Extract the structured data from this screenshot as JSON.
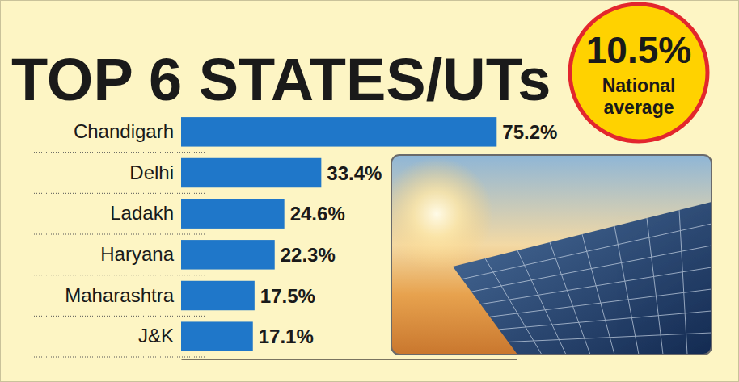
{
  "chart_data": {
    "type": "bar",
    "title": "TOP 6 STATES/UTs",
    "orientation": "horizontal",
    "categories": [
      "Chandigarh",
      "Delhi",
      "Ladakh",
      "Haryana",
      "Maharashtra",
      "J&K"
    ],
    "values": [
      75.2,
      33.4,
      24.6,
      22.3,
      17.5,
      17.1
    ],
    "value_labels": [
      "75.2%",
      "33.4%",
      "24.6%",
      "22.3%",
      "17.5%",
      "17.1%"
    ],
    "data_labels": true,
    "color": "#1f77c9",
    "xlim": [
      0,
      80
    ],
    "xticks": [],
    "tick_labels": "y",
    "grid": false,
    "annotations": [
      {
        "text": "10.5%"
      },
      {
        "text": "National average"
      }
    ]
  }
}
